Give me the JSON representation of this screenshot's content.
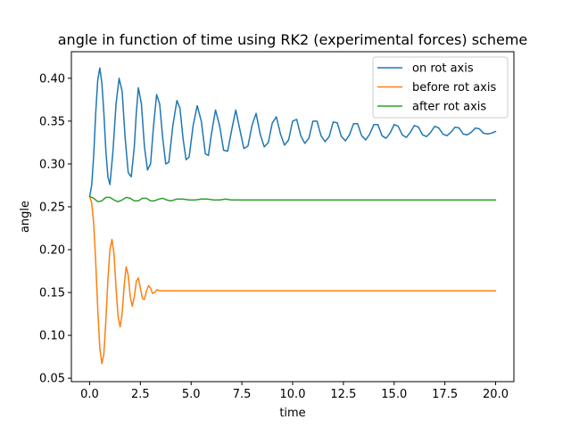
{
  "chart_data": {
    "type": "line",
    "title": "angle in function of time using RK2 (experimental forces) scheme",
    "xlabel": "time",
    "ylabel": "angle",
    "xlim": [
      -0.9,
      20.9
    ],
    "ylim": [
      0.046,
      0.431
    ],
    "xticks": [
      0.0,
      2.5,
      5.0,
      7.5,
      10.0,
      12.5,
      15.0,
      17.5,
      20.0
    ],
    "xtick_labels": [
      "0.0",
      "2.5",
      "5.0",
      "7.5",
      "10.0",
      "12.5",
      "15.0",
      "17.5",
      "20.0"
    ],
    "yticks": [
      0.05,
      0.1,
      0.15,
      0.2,
      0.25,
      0.3,
      0.35,
      0.4
    ],
    "ytick_labels": [
      "0.05",
      "0.10",
      "0.15",
      "0.20",
      "0.25",
      "0.30",
      "0.35",
      "0.40"
    ],
    "grid": false,
    "legend_position": "top-right",
    "series": [
      {
        "name": "on rot axis",
        "color": "#1f77b4",
        "x": [
          0.0,
          0.1,
          0.2,
          0.3,
          0.4,
          0.5,
          0.6,
          0.7,
          0.8,
          0.9,
          1.0,
          1.15,
          1.3,
          1.45,
          1.6,
          1.75,
          1.9,
          2.05,
          2.2,
          2.3,
          2.4,
          2.55,
          2.7,
          2.85,
          3.0,
          3.15,
          3.3,
          3.45,
          3.6,
          3.75,
          3.9,
          4.1,
          4.3,
          4.45,
          4.6,
          4.75,
          4.9,
          5.1,
          5.3,
          5.5,
          5.7,
          5.85,
          6.0,
          6.2,
          6.4,
          6.6,
          6.8,
          7.0,
          7.2,
          7.4,
          7.6,
          7.8,
          8.0,
          8.2,
          8.4,
          8.6,
          8.8,
          9.0,
          9.2,
          9.4,
          9.6,
          9.8,
          10.0,
          10.2,
          10.4,
          10.6,
          10.8,
          11.0,
          11.2,
          11.4,
          11.6,
          11.8,
          12.0,
          12.2,
          12.4,
          12.6,
          12.8,
          13.0,
          13.2,
          13.4,
          13.6,
          13.8,
          14.0,
          14.2,
          14.4,
          14.6,
          14.8,
          15.0,
          15.2,
          15.4,
          15.6,
          15.8,
          16.0,
          16.2,
          16.4,
          16.6,
          16.8,
          17.0,
          17.2,
          17.4,
          17.6,
          17.8,
          18.0,
          18.2,
          18.4,
          18.6,
          18.8,
          19.0,
          19.2,
          19.4,
          19.6,
          19.8,
          20.0
        ],
        "y": [
          0.262,
          0.275,
          0.31,
          0.36,
          0.398,
          0.412,
          0.395,
          0.36,
          0.315,
          0.285,
          0.276,
          0.315,
          0.37,
          0.4,
          0.385,
          0.33,
          0.29,
          0.285,
          0.32,
          0.36,
          0.389,
          0.37,
          0.32,
          0.293,
          0.3,
          0.345,
          0.381,
          0.37,
          0.33,
          0.3,
          0.302,
          0.345,
          0.374,
          0.365,
          0.33,
          0.305,
          0.308,
          0.345,
          0.368,
          0.35,
          0.312,
          0.31,
          0.335,
          0.363,
          0.345,
          0.316,
          0.315,
          0.34,
          0.363,
          0.34,
          0.318,
          0.321,
          0.345,
          0.359,
          0.335,
          0.32,
          0.325,
          0.348,
          0.355,
          0.335,
          0.322,
          0.328,
          0.35,
          0.352,
          0.333,
          0.324,
          0.33,
          0.35,
          0.35,
          0.333,
          0.326,
          0.332,
          0.349,
          0.348,
          0.332,
          0.327,
          0.334,
          0.347,
          0.347,
          0.333,
          0.328,
          0.335,
          0.346,
          0.346,
          0.333,
          0.33,
          0.336,
          0.346,
          0.344,
          0.334,
          0.331,
          0.337,
          0.345,
          0.343,
          0.334,
          0.332,
          0.337,
          0.344,
          0.342,
          0.335,
          0.333,
          0.337,
          0.343,
          0.342,
          0.335,
          0.334,
          0.337,
          0.342,
          0.341,
          0.336,
          0.335,
          0.336,
          0.338
        ]
      },
      {
        "name": "before rot axis",
        "color": "#ff7f0e",
        "x": [
          0.0,
          0.1,
          0.2,
          0.3,
          0.4,
          0.5,
          0.6,
          0.7,
          0.8,
          0.9,
          1.0,
          1.1,
          1.2,
          1.3,
          1.4,
          1.5,
          1.6,
          1.7,
          1.8,
          1.9,
          2.0,
          2.1,
          2.2,
          2.3,
          2.4,
          2.5,
          2.6,
          2.7,
          2.8,
          2.9,
          3.0,
          3.1,
          3.2,
          3.3,
          3.5,
          4.0,
          5.0,
          7.5,
          10.0,
          12.5,
          15.0,
          17.5,
          20.0
        ],
        "y": [
          0.262,
          0.255,
          0.23,
          0.185,
          0.13,
          0.085,
          0.067,
          0.078,
          0.118,
          0.165,
          0.2,
          0.212,
          0.195,
          0.155,
          0.122,
          0.11,
          0.125,
          0.158,
          0.18,
          0.17,
          0.145,
          0.134,
          0.145,
          0.163,
          0.167,
          0.155,
          0.143,
          0.142,
          0.152,
          0.158,
          0.155,
          0.149,
          0.15,
          0.153,
          0.152,
          0.152,
          0.152,
          0.152,
          0.152,
          0.152,
          0.152,
          0.152,
          0.152
        ]
      },
      {
        "name": "after rot axis",
        "color": "#2ca02c",
        "x": [
          0.0,
          0.2,
          0.4,
          0.6,
          0.8,
          1.0,
          1.2,
          1.4,
          1.6,
          1.8,
          2.0,
          2.2,
          2.4,
          2.6,
          2.8,
          3.0,
          3.2,
          3.4,
          3.6,
          3.8,
          4.0,
          4.3,
          4.6,
          4.9,
          5.2,
          5.5,
          5.8,
          6.1,
          6.4,
          6.7,
          7.0,
          7.5,
          8.0,
          10.0,
          12.5,
          15.0,
          17.5,
          20.0
        ],
        "y": [
          0.262,
          0.26,
          0.256,
          0.257,
          0.261,
          0.261,
          0.258,
          0.256,
          0.258,
          0.261,
          0.26,
          0.257,
          0.257,
          0.26,
          0.26,
          0.257,
          0.257,
          0.259,
          0.26,
          0.258,
          0.257,
          0.259,
          0.259,
          0.258,
          0.258,
          0.259,
          0.259,
          0.258,
          0.258,
          0.259,
          0.258,
          0.258,
          0.258,
          0.258,
          0.258,
          0.258,
          0.258,
          0.258
        ]
      }
    ]
  }
}
